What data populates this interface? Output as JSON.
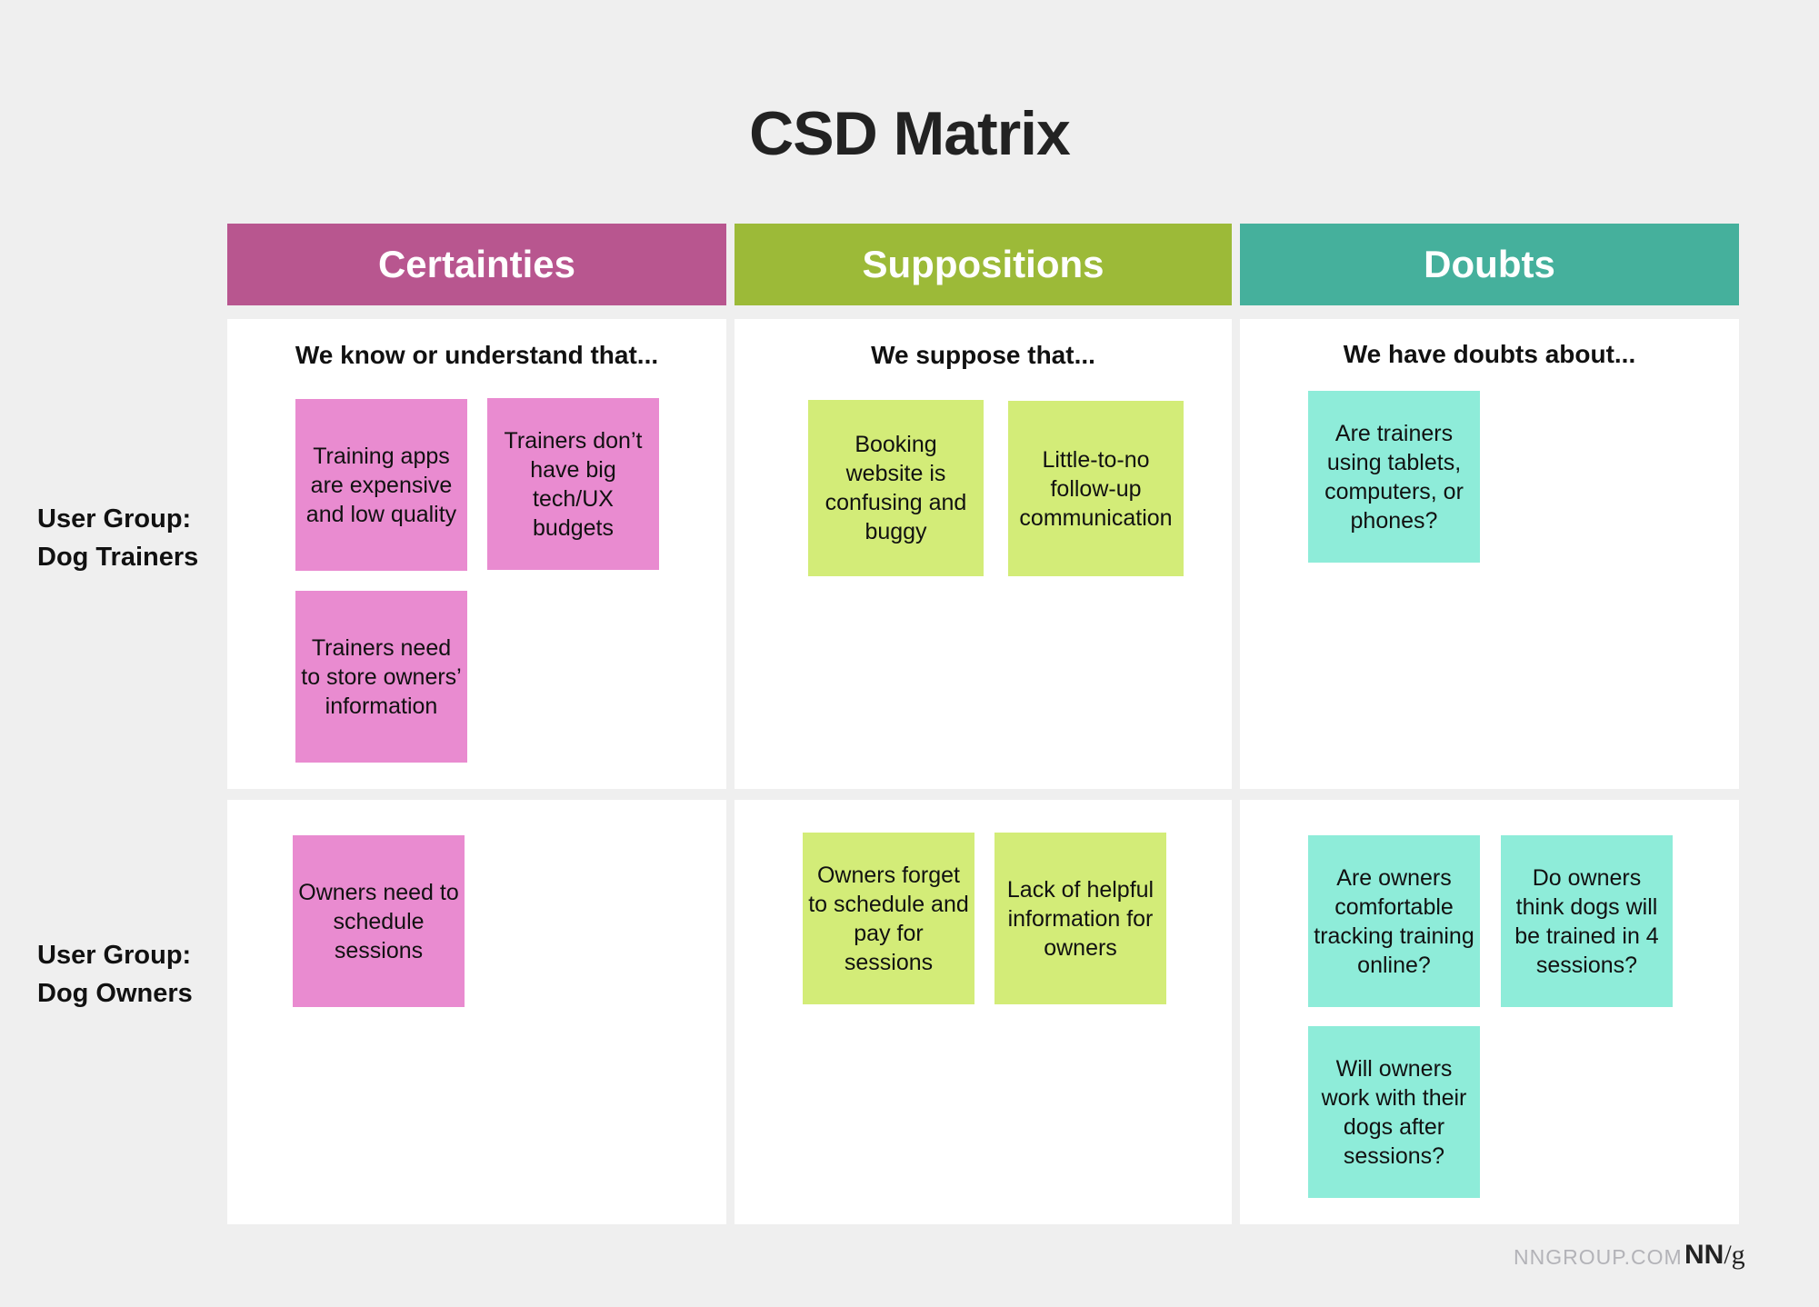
{
  "title": "CSD Matrix",
  "columns": [
    {
      "label": "Certainties",
      "subtitle": "We know or understand that...",
      "color": "#b8568f",
      "note_color": "#e98bd0"
    },
    {
      "label": "Suppositions",
      "subtitle": "We suppose that...",
      "color": "#9cba38",
      "note_color": "#d3ec78"
    },
    {
      "label": "Doubts",
      "subtitle": "We have doubts about...",
      "color": "#45b09c",
      "note_color": "#8eecd9"
    }
  ],
  "rows": [
    {
      "label_line1": "User Group:",
      "label_line2": "Dog Trainers"
    },
    {
      "label_line1": "User Group:",
      "label_line2": "Dog Owners"
    }
  ],
  "notes": {
    "trainers_certainties": [
      "Training apps are expensive and low quality",
      "Trainers don’t have big tech/UX budgets",
      "Trainers need to store owners’ information"
    ],
    "trainers_suppositions": [
      "Booking website is confusing and buggy",
      "Little-to-no follow-up communication"
    ],
    "trainers_doubts": [
      "Are trainers using tablets, computers, or phones?"
    ],
    "owners_certainties": [
      "Owners need to schedule sessions"
    ],
    "owners_suppositions": [
      "Owners forget to schedule and pay for sessions",
      "Lack of helpful information for owners"
    ],
    "owners_doubts": [
      "Are owners comfortable tracking training online?",
      "Do owners think dogs will be trained in 4 sessions?",
      "Will owners work with their dogs after sessions?"
    ]
  },
  "footer": {
    "site": "NNGROUP.COM",
    "logo_bold": "NN",
    "logo_rest": "/g"
  },
  "background": "#efefef"
}
